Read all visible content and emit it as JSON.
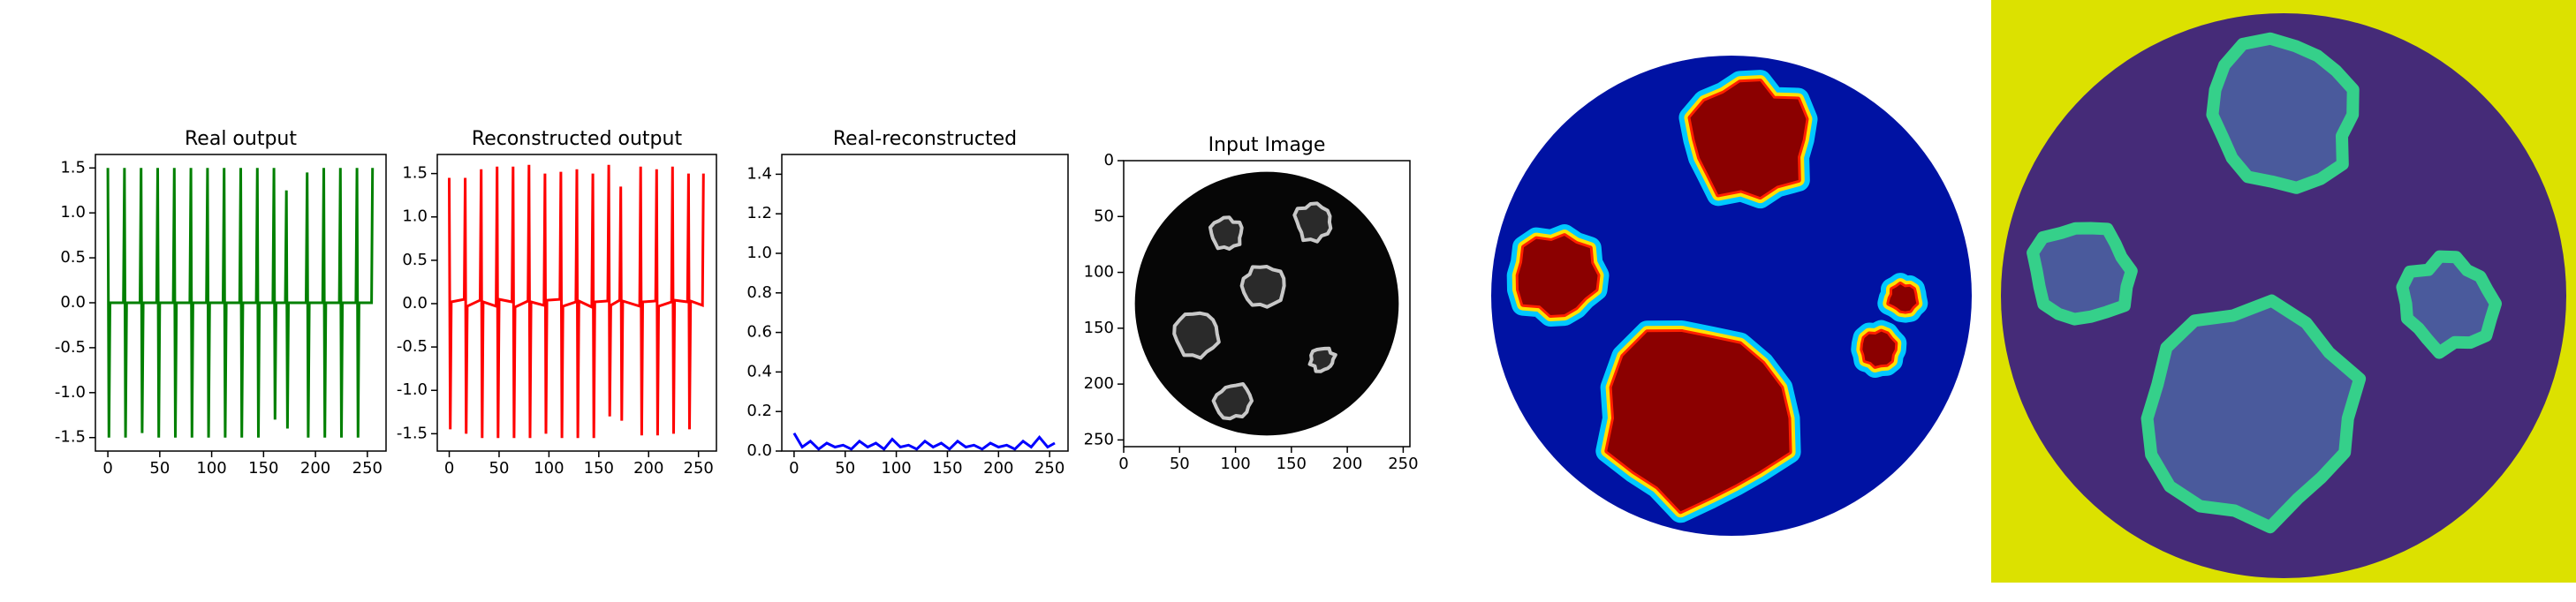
{
  "chart_data": [
    {
      "type": "line",
      "title": "Real output",
      "color": "#008000",
      "x": [
        0,
        1,
        2,
        15,
        16,
        17,
        18,
        31,
        32,
        33,
        34,
        47,
        48,
        49,
        50,
        63,
        64,
        65,
        66,
        79,
        80,
        81,
        82,
        95,
        96,
        97,
        98,
        111,
        112,
        113,
        114,
        127,
        128,
        129,
        130,
        143,
        144,
        145,
        146,
        159,
        160,
        161,
        162,
        171,
        172,
        173,
        174,
        191,
        192,
        193,
        194,
        207,
        208,
        209,
        210,
        223,
        224,
        225,
        226,
        239,
        240,
        241,
        242,
        254,
        255
      ],
      "values": [
        1.5,
        -1.5,
        0,
        0,
        1.5,
        -1.5,
        0,
        0,
        1.5,
        -1.45,
        0,
        0,
        1.5,
        -1.5,
        0,
        0,
        1.5,
        -1.5,
        0,
        0,
        1.5,
        -1.5,
        0,
        0,
        1.5,
        -1.5,
        0,
        0,
        1.5,
        -1.5,
        0,
        0,
        1.5,
        -1.5,
        0,
        0,
        1.5,
        -1.5,
        0,
        0,
        1.5,
        -1.3,
        0,
        0,
        1.25,
        -1.4,
        0,
        0,
        1.45,
        -1.5,
        0,
        0,
        1.5,
        -1.5,
        0,
        0,
        1.5,
        -1.5,
        0,
        0,
        1.5,
        -1.5,
        0,
        0,
        1.5
      ],
      "xlim": [
        -12,
        268
      ],
      "xticks": [
        0,
        50,
        100,
        150,
        200,
        250
      ],
      "ylim": [
        -1.65,
        1.65
      ],
      "yticks": [
        -1.5,
        {
          "value": -1,
          "label": "-1.0"
        },
        -0.5,
        {
          "value": 0,
          "label": "0.0"
        },
        0.5,
        {
          "value": 1,
          "label": "1.0"
        },
        1.5
      ]
    },
    {
      "type": "line",
      "title": "Reconstructed output",
      "color": "#ff0000",
      "x": [
        0,
        1,
        2,
        15,
        16,
        17,
        18,
        31,
        32,
        33,
        34,
        47,
        48,
        49,
        50,
        63,
        64,
        65,
        66,
        79,
        80,
        81,
        82,
        95,
        96,
        97,
        98,
        111,
        112,
        113,
        114,
        127,
        128,
        129,
        130,
        143,
        144,
        145,
        146,
        159,
        160,
        161,
        162,
        171,
        172,
        173,
        174,
        191,
        192,
        193,
        194,
        207,
        208,
        209,
        210,
        223,
        224,
        225,
        226,
        239,
        240,
        241,
        242,
        254,
        255
      ],
      "values": [
        1.45,
        -1.45,
        0.02,
        0.05,
        1.45,
        -1.5,
        -0.03,
        0.04,
        1.55,
        -1.55,
        0.02,
        -0.03,
        1.58,
        -1.55,
        0.05,
        0.02,
        1.58,
        -1.55,
        -0.04,
        0.03,
        1.6,
        -1.55,
        0.02,
        -0.02,
        1.5,
        -1.5,
        0.04,
        0.05,
        1.52,
        -1.55,
        -0.03,
        0.02,
        1.55,
        -1.55,
        0.03,
        -0.04,
        1.5,
        -1.55,
        0.02,
        0.03,
        1.6,
        -1.3,
        -0.02,
        0.04,
        1.35,
        -1.35,
        0.03,
        -0.03,
        1.58,
        -1.52,
        0.02,
        0.03,
        1.55,
        -1.52,
        -0.03,
        0.02,
        1.58,
        -1.5,
        0.04,
        0.02,
        1.5,
        -1.45,
        0.03,
        -0.02,
        1.5
      ],
      "xlim": [
        -12,
        268
      ],
      "xticks": [
        0,
        50,
        100,
        150,
        200,
        250
      ],
      "ylim": [
        -1.7,
        1.72
      ],
      "yticks": [
        -1.5,
        {
          "value": -1,
          "label": "-1.0"
        },
        -0.5,
        {
          "value": 0,
          "label": "0.0"
        },
        0.5,
        {
          "value": 1,
          "label": "1.0"
        },
        1.5
      ]
    },
    {
      "type": "line",
      "title": "Real-reconstructed",
      "color": "#0000ff",
      "x": [
        0,
        8,
        16,
        24,
        32,
        40,
        48,
        56,
        64,
        72,
        80,
        88,
        96,
        104,
        112,
        120,
        128,
        136,
        144,
        152,
        160,
        168,
        176,
        184,
        192,
        200,
        208,
        216,
        224,
        232,
        240,
        248,
        255
      ],
      "values": [
        0.09,
        0.02,
        0.05,
        0.01,
        0.04,
        0.02,
        0.03,
        0.01,
        0.05,
        0.02,
        0.04,
        0.01,
        0.06,
        0.02,
        0.03,
        0.01,
        0.05,
        0.02,
        0.04,
        0.01,
        0.05,
        0.02,
        0.03,
        0.01,
        0.04,
        0.02,
        0.03,
        0.01,
        0.05,
        0.02,
        0.07,
        0.02,
        0.04
      ],
      "xlim": [
        -12,
        268
      ],
      "xticks": [
        0,
        50,
        100,
        150,
        200,
        250
      ],
      "ylim": [
        0,
        1.5
      ],
      "yticks": [
        {
          "value": 0,
          "label": "0.0"
        },
        0.2,
        0.4,
        0.6,
        0.8,
        {
          "value": 1,
          "label": "1.0"
        },
        1.2,
        1.4
      ]
    },
    {
      "type": "image",
      "title": "Input Image",
      "xlim": [
        0,
        256
      ],
      "xticks": [
        0,
        50,
        100,
        150,
        200,
        250
      ],
      "ylim": [
        256,
        0
      ],
      "yticks": [
        0,
        50,
        100,
        150,
        200,
        250
      ]
    }
  ]
}
